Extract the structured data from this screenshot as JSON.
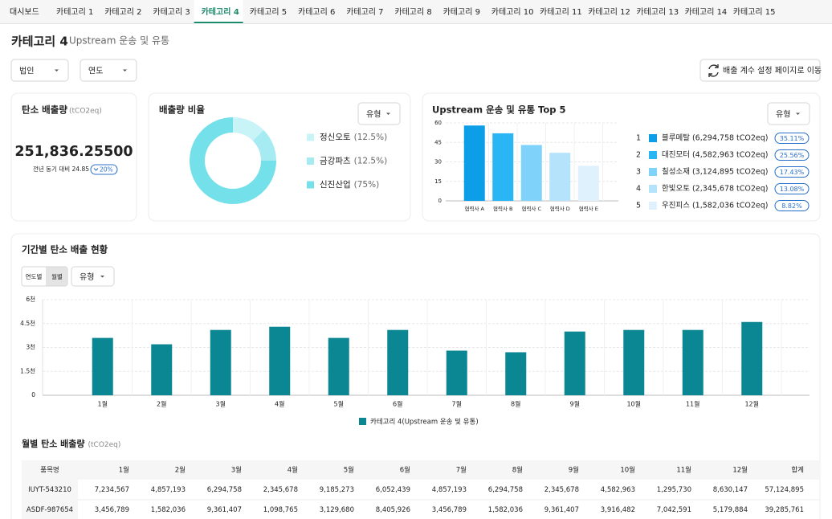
{
  "tabs": [
    "대시보드",
    "카테고리 1",
    "카테고리 2",
    "카테고리 3",
    "카테고리 4",
    "카테고리 5",
    "카테고리 6",
    "카테고리 7",
    "카테고리 8",
    "카테고리 9",
    "카테고리 10",
    "카테고리 11",
    "카테고리 12",
    "카테고리 13",
    "카테고리 14",
    "카테고리 15"
  ],
  "active_tab": 4,
  "header": {
    "title": "카테고리 4",
    "subtitle": "Upstream 운송 및 유통"
  },
  "filters": [
    "법인",
    "연도"
  ],
  "action_button": "배출 계수 설정 페이지로 이동",
  "emission_card": {
    "title": "탄소 배출량",
    "unit": "(tCO2eq)",
    "value": "251,836.25500",
    "comparison": "전년 동기 대비 24.85",
    "change": "20%"
  },
  "chart_data": [
    {
      "type": "pie",
      "title": "배출량 비율",
      "filter": "유형",
      "donut": true,
      "categories": [
        "정신오토",
        "금강파츠",
        "신진산업"
      ],
      "values": [
        12.5,
        12.5,
        75
      ],
      "value_labels": [
        "(12.5%)",
        "(12.5%)",
        "(75%)"
      ],
      "colors": [
        "#c8f3f7",
        "#a6ebf2",
        "#74e0e9"
      ]
    },
    {
      "type": "bar",
      "title": "Upstream 운송 및 유통 Top 5",
      "filter": "유형",
      "categories": [
        "협력사 A",
        "협력사 B",
        "협력사 C",
        "협력사 D",
        "협력사 E"
      ],
      "values": [
        58,
        52,
        43,
        37,
        27
      ],
      "colors": [
        "#0c9fe8",
        "#2ab6f5",
        "#7fd2fa",
        "#b5e3fb",
        "#dff1fc"
      ],
      "ylim": [
        0,
        60
      ],
      "yticks": [
        0,
        15,
        30,
        45,
        60
      ],
      "grid": true,
      "ranking": [
        {
          "rank": "1",
          "label": "블루메탈 (6,294,758 tCO2eq)",
          "share": "35.11%"
        },
        {
          "rank": "2",
          "label": "대진모터 (4,582,963 tCO2eq)",
          "share": "25.56%"
        },
        {
          "rank": "3",
          "label": "칠성소재 (3,124,895 tCO2eq)",
          "share": "17.43%"
        },
        {
          "rank": "4",
          "label": "한빛오토 (2,345,678 tCO2eq)",
          "share": "13.08%"
        },
        {
          "rank": "5",
          "label": "우진피스 (1,582,036 tCO2eq)",
          "share": "8.82%"
        }
      ]
    },
    {
      "type": "bar",
      "title": "기간별 탄소 배출 현황",
      "toggle": [
        "연도별",
        "월별"
      ],
      "filter": "유형",
      "categories": [
        "1월",
        "2월",
        "3월",
        "4월",
        "5월",
        "6월",
        "7월",
        "8월",
        "9월",
        "10월",
        "11월",
        "12월"
      ],
      "series": [
        {
          "name": "카테고리 4(Upstream 운송 및 유통)",
          "color": "#0b8693",
          "values": [
            3600,
            3200,
            4100,
            4300,
            3600,
            4100,
            2800,
            2700,
            4000,
            4100,
            4100,
            4600
          ]
        }
      ],
      "ylim": [
        0,
        6000
      ],
      "yticks": [
        0,
        {
          "value": 1500,
          "label": "1.5천"
        },
        {
          "value": 3000,
          "label": "3천"
        },
        {
          "value": 4500,
          "label": "4.5천"
        },
        {
          "value": 6000,
          "label": "6천"
        }
      ],
      "grid": true
    }
  ],
  "table": {
    "title": "월별 탄소 배출량",
    "unit": "(tCO2eq)",
    "header": [
      "품목명",
      "1월",
      "2월",
      "3월",
      "4월",
      "5월",
      "6월",
      "7월",
      "8월",
      "9월",
      "10월",
      "11월",
      "12월",
      "합계"
    ],
    "rows": [
      [
        "IUYT-543210",
        "7,234,567",
        "4,857,193",
        "6,294,758",
        "2,345,678",
        "9,185,273",
        "6,052,439",
        "4,857,193",
        "6,294,758",
        "2,345,678",
        "4,582,963",
        "1,295,730",
        "8,630,147",
        "57,124,895"
      ],
      [
        "ASDF-987654",
        "3,456,789",
        "1,582,036",
        "9,361,407",
        "1,098,765",
        "3,129,680",
        "8,405,926",
        "3,456,789",
        "1,582,036",
        "9,361,407",
        "3,916,482",
        "7,042,591",
        "5,179,884",
        "39,285,761"
      ]
    ]
  }
}
